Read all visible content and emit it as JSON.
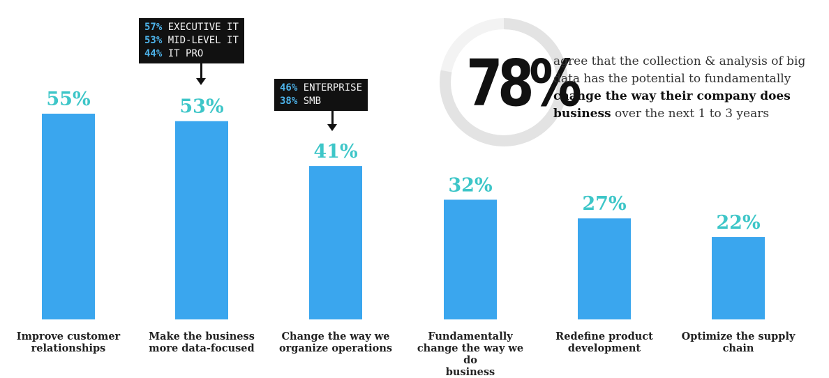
{
  "chart_data": {
    "type": "bar",
    "categories": [
      "Improve customer relationships",
      "Make the business more data-focused",
      "Change the way we organize operations",
      "Fundamentally change the way we do business",
      "Redefine product development",
      "Optimize the supply chain"
    ],
    "category_lines": [
      [
        "Improve customer",
        "relationships"
      ],
      [
        "Make the business",
        "more data-focused"
      ],
      [
        "Change the way we",
        "organize operations"
      ],
      [
        "Fundamentally",
        "change the way we do",
        "business"
      ],
      [
        "Redefine product",
        "development"
      ],
      [
        "Optimize the supply",
        "chain"
      ]
    ],
    "values": [
      55,
      53,
      41,
      32,
      27,
      22
    ],
    "value_labels": [
      "55%",
      "53%",
      "41%",
      "32%",
      "27%",
      "22%"
    ],
    "ylim": [
      0,
      60
    ],
    "grid": false,
    "bar_color": "#3aa6ee",
    "label_color": "#3ec6c8",
    "annotations": [
      {
        "target": "Make the business more data-focused",
        "items": [
          {
            "pct": "57%",
            "label": "EXECUTIVE IT"
          },
          {
            "pct": "53%",
            "label": "MID-LEVEL IT"
          },
          {
            "pct": "44%",
            "label": "IT PRO"
          }
        ]
      },
      {
        "target": "Change the way we organize operations",
        "items": [
          {
            "pct": "46%",
            "label": "ENTERPRISE"
          },
          {
            "pct": "38%",
            "label": "SMB"
          }
        ]
      }
    ]
  },
  "headline": {
    "value": "78%",
    "ring_fraction": 0.78,
    "ring_color": "#e3e3e3",
    "text_before": "agree that the collection & analysis of big data has the potential to fundamentally",
    "text_bold": "change the way their company does business",
    "text_after": "over the next 1 to 3 years"
  }
}
